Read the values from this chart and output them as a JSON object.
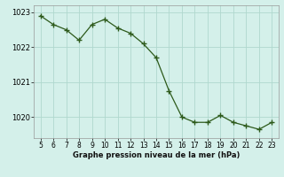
{
  "x": [
    5,
    6,
    7,
    8,
    9,
    10,
    11,
    12,
    13,
    14,
    15,
    16,
    17,
    18,
    19,
    20,
    21,
    22,
    23
  ],
  "y": [
    1022.9,
    1022.65,
    1022.5,
    1022.2,
    1022.65,
    1022.8,
    1022.55,
    1022.4,
    1022.1,
    1021.7,
    1020.75,
    1020.0,
    1019.85,
    1019.85,
    1020.05,
    1019.85,
    1019.75,
    1019.65,
    1019.85
  ],
  "xlim": [
    4.5,
    23.5
  ],
  "ylim": [
    1019.4,
    1023.2
  ],
  "yticks": [
    1020,
    1021,
    1022,
    1023
  ],
  "xticks": [
    5,
    6,
    7,
    8,
    9,
    10,
    11,
    12,
    13,
    14,
    15,
    16,
    17,
    18,
    19,
    20,
    21,
    22,
    23
  ],
  "xlabel": "Graphe pression niveau de la mer (hPa)",
  "line_color": "#2d5a1b",
  "marker": "+",
  "bg_color": "#d4f0ea",
  "grid_color": "#b0d8ce",
  "ytick_labelsize": 6,
  "xtick_labelsize": 5.5
}
